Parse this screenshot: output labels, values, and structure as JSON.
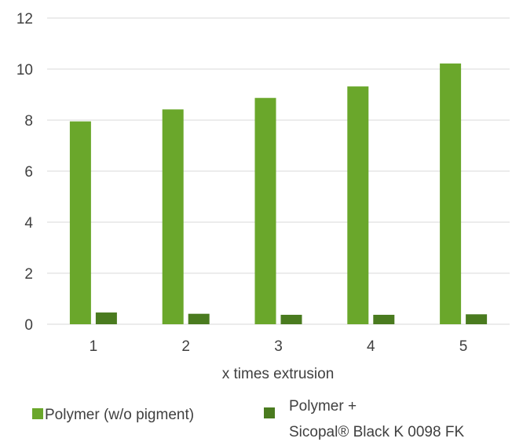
{
  "chart_data": {
    "type": "bar",
    "categories": [
      "1",
      "2",
      "3",
      "4",
      "5"
    ],
    "series": [
      {
        "name": "Polymer (w/o pigment)",
        "color": "#6aa72b",
        "values": [
          7.95,
          8.42,
          8.87,
          9.32,
          10.22
        ]
      },
      {
        "name": "Polymer + Sicopal® Black K 0098 FK",
        "legend_lines": [
          "Polymer +",
          "Sicopal® Black K 0098 FK"
        ],
        "color": "#4a7b1f",
        "values": [
          0.46,
          0.41,
          0.37,
          0.37,
          0.39
        ]
      }
    ],
    "title": "",
    "xlabel": "x times extrusion",
    "ylabel": "",
    "ylim": [
      0,
      12
    ],
    "yticks": [
      "0",
      "2",
      "4",
      "6",
      "8",
      "10",
      "12"
    ],
    "grid": true,
    "legend_position": "bottom"
  }
}
